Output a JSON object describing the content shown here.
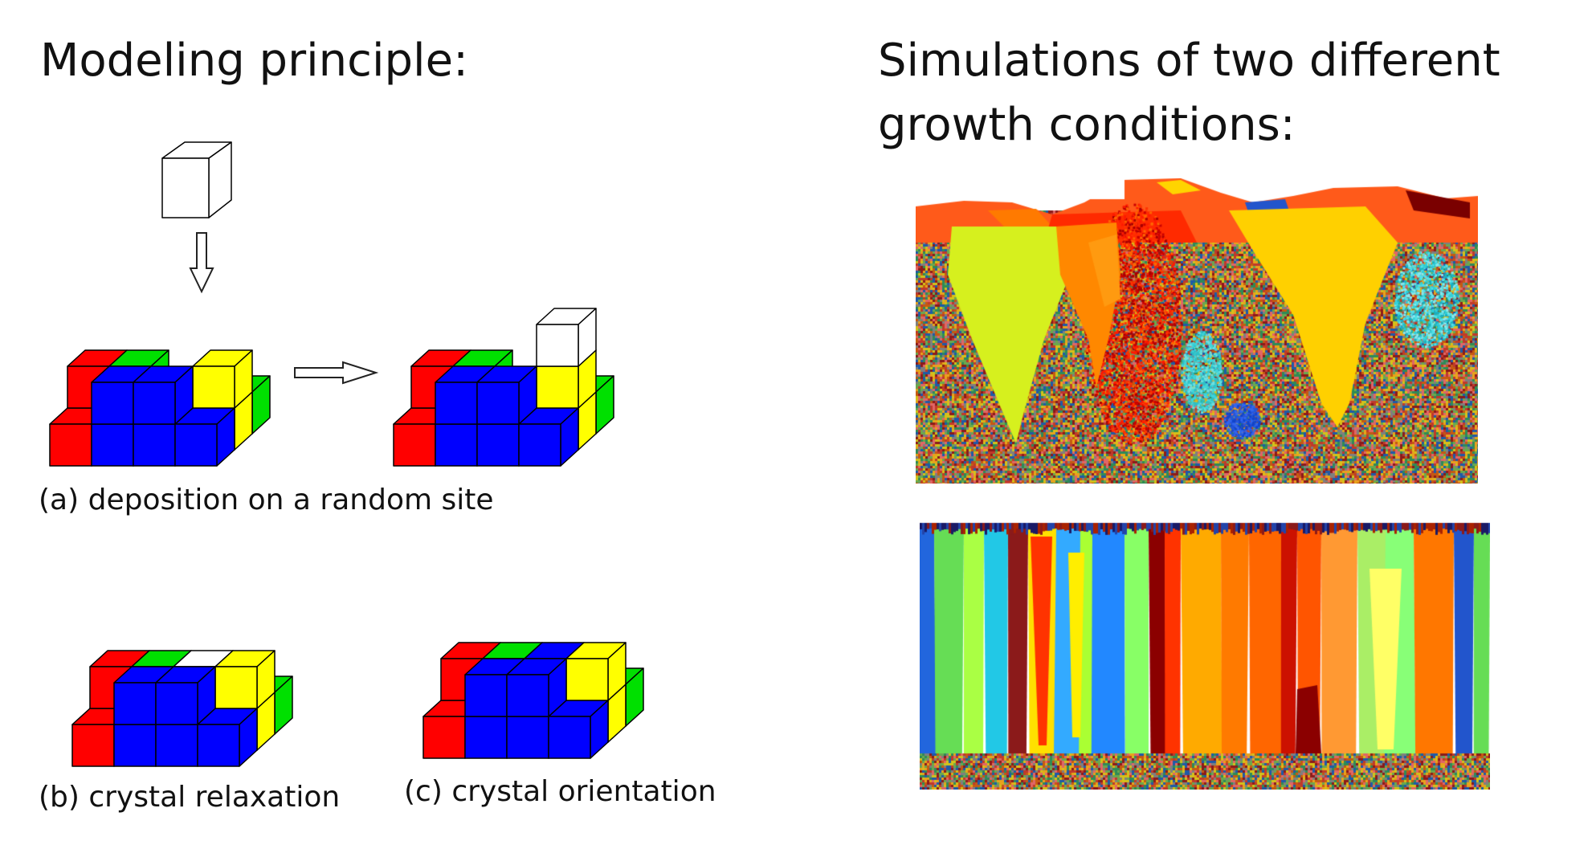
{
  "left_heading": "Modeling principle:",
  "right_heading_line1": "Simulations of two different",
  "right_heading_line2": "growth conditions:",
  "caption_a": "(a) deposition on a random site",
  "caption_b": "(b) crystal relaxation",
  "caption_c": "(c) crystal orientation",
  "colors": {
    "red": "#ff0000",
    "green": "#00e000",
    "blue": "#0000ff",
    "yellow": "#ffff00",
    "white": "#ffffff",
    "outline": "#000000"
  }
}
